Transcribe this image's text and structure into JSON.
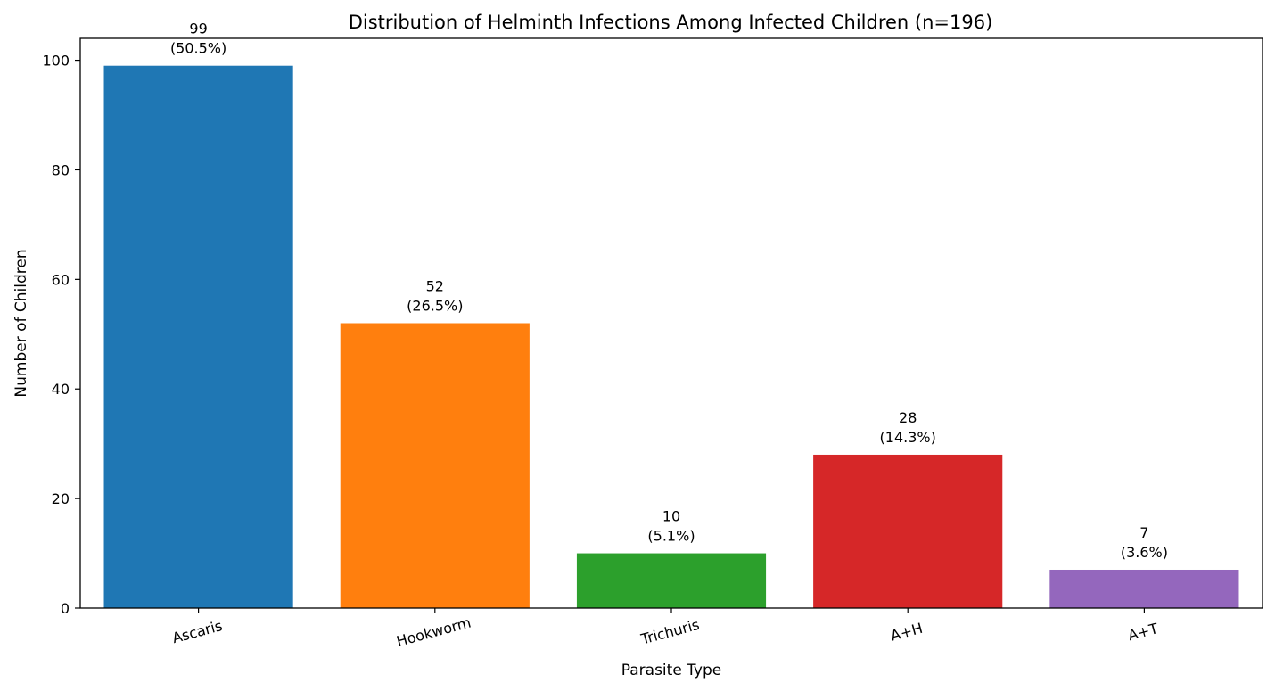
{
  "chart_data": {
    "type": "bar",
    "title": "Distribution of Helminth Infections Among Infected Children (n=196)",
    "xlabel": "Parasite Type",
    "ylabel": "Number of Children",
    "categories": [
      "Ascaris",
      "Hookworm",
      "Trichuris",
      "A+H",
      "A+T"
    ],
    "values": [
      99,
      52,
      10,
      28,
      7
    ],
    "percent_labels": [
      "(50.5%)",
      "(26.5%)",
      "(5.1%)",
      "(14.3%)",
      "(3.6%)"
    ],
    "colors": [
      "#1f77b4",
      "#ff7f0e",
      "#2ca02c",
      "#d62728",
      "#9467bd"
    ],
    "ylim": [
      0,
      104
    ],
    "yticks": [
      0,
      20,
      40,
      60,
      80,
      100
    ],
    "grid": false,
    "xtick_rotation_deg": -15
  }
}
